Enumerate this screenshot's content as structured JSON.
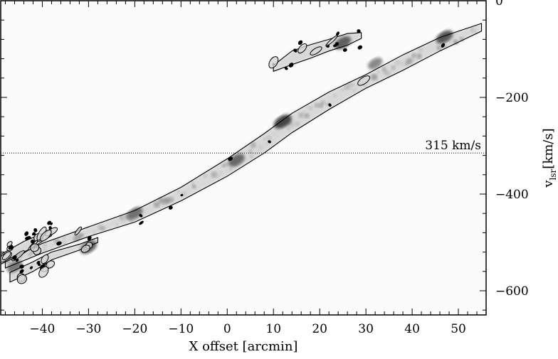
{
  "chart_data": {
    "type": "heatmap",
    "title": "",
    "xlabel": "X offset [arcmin]",
    "ylabel_main": "v",
    "ylabel_sub": "lsr",
    "ylabel_unit": "[km/s]",
    "xlim": [
      -49,
      56
    ],
    "ylim": [
      0,
      -650
    ],
    "x_ticks": [
      -40,
      -30,
      -20,
      -10,
      0,
      10,
      20,
      30,
      40,
      50
    ],
    "x_tick_labels": [
      "−40",
      "−30",
      "−20",
      "−10",
      "0",
      "10",
      "20",
      "30",
      "40",
      "50"
    ],
    "x_minor_step": 2,
    "y_ticks": [
      0,
      -200,
      -400,
      -600
    ],
    "y_tick_labels": [
      "0",
      "−200",
      "−400",
      "−600"
    ],
    "y_minor_step": 40,
    "reference_line": {
      "y": -315,
      "label": "315 km/s",
      "style": "dotted"
    },
    "emission_features": [
      {
        "name": "main ridge",
        "spine": [
          [
            -48,
            -545
          ],
          [
            -40,
            -512
          ],
          [
            -30,
            -478
          ],
          [
            -20,
            -446
          ],
          [
            -10,
            -400
          ],
          [
            0,
            -345
          ],
          [
            8,
            -295
          ],
          [
            14,
            -253
          ],
          [
            22,
            -207
          ],
          [
            30,
            -167
          ],
          [
            38,
            -128
          ],
          [
            46,
            -90
          ],
          [
            55,
            -55
          ]
        ],
        "width": [
          8,
          10,
          10,
          12,
          14,
          18,
          20,
          20,
          18,
          14,
          16,
          14,
          8
        ]
      },
      {
        "name": "lower branch",
        "spine": [
          [
            -47,
            -572
          ],
          [
            -42,
            -550
          ],
          [
            -38,
            -528
          ],
          [
            -32,
            -510
          ],
          [
            -28,
            -495
          ]
        ],
        "width": [
          10,
          10,
          8,
          6,
          5
        ]
      },
      {
        "name": "upper left branch",
        "spine": [
          [
            -49,
            -535
          ],
          [
            -44,
            -510
          ],
          [
            -38,
            -480
          ]
        ],
        "width": [
          10,
          12,
          6
        ]
      },
      {
        "name": "upper offset branch",
        "spine": [
          [
            10,
            -140
          ],
          [
            14,
            -118
          ],
          [
            18,
            -105
          ],
          [
            22,
            -92
          ],
          [
            26,
            -80
          ],
          [
            29,
            -72
          ]
        ],
        "width": [
          6,
          14,
          14,
          12,
          12,
          6
        ]
      }
    ],
    "emission_peaks": [
      {
        "x": 12,
        "y": -250,
        "intensity": 0.95
      },
      {
        "x": 47,
        "y": -75,
        "intensity": 0.85
      },
      {
        "x": 25,
        "y": -87,
        "intensity": 0.8
      },
      {
        "x": -30,
        "y": -510,
        "intensity": 0.8
      },
      {
        "x": 2,
        "y": -330,
        "intensity": 0.75
      },
      {
        "x": -20,
        "y": -440,
        "intensity": 0.7
      },
      {
        "x": -46,
        "y": -550,
        "intensity": 0.65
      },
      {
        "x": 32,
        "y": -130,
        "intensity": 0.55
      }
    ],
    "colormap": [
      "#ffffff",
      "#3a3a3a"
    ]
  }
}
